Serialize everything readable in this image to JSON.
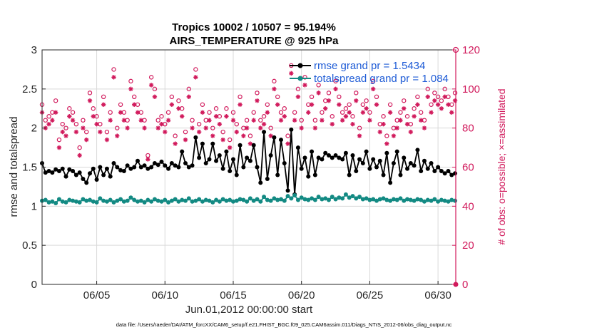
{
  "chart_data": {
    "type": "line",
    "title": "Tropics 10002 / 10507 = 95.194%",
    "subtitle": "AIRS_TEMPERATURE @ 925 hPa",
    "xlabel": "Jun.01,2012 00:00:00 start",
    "ylabel": "rmse and totalspread",
    "ylabel_right": "# of obs: o=possible; ×=assimilated",
    "footnote": "data file: /Users/raeder/DAI/ATM_forcXX/CAM6_setup/f.e21.FHIST_BGC.f09_025.CAM6assim.011/Diags_NTrS_2012-06/obs_diag_output.nc",
    "xlim": [
      1.0,
      31.3
    ],
    "ylim": [
      0,
      3
    ],
    "ylim_right": [
      0,
      120
    ],
    "x_ticks": [
      5,
      10,
      15,
      20,
      25,
      30
    ],
    "x_tick_labels": [
      "06/05",
      "06/10",
      "06/15",
      "06/20",
      "06/25",
      "06/30"
    ],
    "y_tick_labels": [
      "0",
      "0.5",
      "1",
      "1.5",
      "2",
      "2.5",
      "3"
    ],
    "y_ticks": [
      0,
      0.5,
      1,
      1.5,
      2,
      2.5,
      3
    ],
    "y_right_tick_labels": [
      "0",
      "20",
      "40",
      "60",
      "80",
      "100",
      "120"
    ],
    "y_right_ticks": [
      0,
      20,
      40,
      60,
      80,
      100,
      120
    ],
    "grid": true,
    "legend_position": "top-right",
    "series": [
      {
        "name": "rmse grand pr = 1.5434",
        "color": "#000000",
        "axis": "left",
        "x_start": 1.0,
        "x_step": 0.25,
        "values": [
          1.55,
          1.43,
          1.45,
          1.43,
          1.47,
          1.45,
          1.48,
          1.38,
          1.47,
          1.45,
          1.4,
          1.43,
          1.35,
          1.3,
          1.42,
          1.48,
          1.34,
          1.5,
          1.4,
          1.48,
          1.38,
          1.55,
          1.5,
          1.46,
          1.45,
          1.52,
          1.48,
          1.5,
          1.58,
          1.5,
          1.52,
          1.48,
          1.5,
          1.55,
          1.53,
          1.57,
          1.52,
          1.48,
          1.55,
          1.52,
          1.5,
          1.7,
          1.55,
          1.5,
          1.52,
          1.88,
          1.62,
          1.8,
          1.55,
          1.6,
          1.8,
          1.58,
          1.65,
          1.48,
          1.7,
          1.45,
          1.6,
          1.4,
          1.78,
          1.5,
          1.62,
          1.58,
          1.78,
          1.5,
          1.3,
          1.95,
          1.35,
          1.65,
          1.88,
          1.4,
          1.85,
          1.55,
          1.2,
          1.98,
          1.15,
          1.75,
          1.48,
          1.62,
          1.38,
          1.7,
          1.4,
          1.62,
          1.6,
          1.68,
          1.65,
          1.62,
          1.65,
          1.62,
          1.6,
          1.68,
          1.4,
          1.65,
          1.45,
          1.6,
          1.55,
          1.7,
          1.48,
          1.6,
          1.5,
          1.58,
          1.4,
          1.68,
          1.3,
          1.55,
          1.7,
          1.4,
          1.62,
          1.48,
          1.55,
          1.52,
          1.72,
          1.45,
          1.58,
          1.48,
          1.55,
          1.45,
          1.5,
          1.45,
          1.42,
          1.45,
          1.4,
          1.42,
          1.4,
          1.7,
          1.32,
          1.65,
          1.28,
          1.6,
          1.4,
          1.72,
          1.5,
          1.75,
          1.5,
          1.45,
          1.55,
          1.5,
          1.52,
          1.45,
          1.55,
          1.65,
          1.48,
          1.55,
          1.45,
          1.6,
          1.5,
          1.62,
          1.45,
          1.58,
          1.48,
          1.55,
          1.5,
          1.52,
          1.45,
          1.48,
          1.55,
          1.5,
          1.8,
          1.45,
          1.52,
          1.6,
          1.75,
          1.48,
          1.55,
          1.45,
          1.6,
          1.55,
          1.65,
          1.48,
          1.6,
          1.58,
          1.62,
          1.55,
          1.62,
          1.58,
          1.65,
          1.52,
          1.7,
          1.6,
          1.68,
          1.62,
          1.55,
          1.48
        ]
      },
      {
        "name": "totalspread grand pr = 1.084",
        "color": "#138a83",
        "axis": "left",
        "x_start": 1.0,
        "x_step": 0.25,
        "values": [
          1.07,
          1.08,
          1.05,
          1.06,
          1.04,
          1.09,
          1.06,
          1.05,
          1.08,
          1.07,
          1.06,
          1.05,
          1.09,
          1.07,
          1.08,
          1.06,
          1.05,
          1.1,
          1.07,
          1.06,
          1.08,
          1.05,
          1.07,
          1.09,
          1.06,
          1.07,
          1.11,
          1.08,
          1.06,
          1.07,
          1.05,
          1.08,
          1.06,
          1.09,
          1.07,
          1.06,
          1.08,
          1.05,
          1.07,
          1.09,
          1.06,
          1.08,
          1.07,
          1.1,
          1.06,
          1.07,
          1.09,
          1.06,
          1.08,
          1.07,
          1.05,
          1.08,
          1.06,
          1.09,
          1.07,
          1.08,
          1.06,
          1.07,
          1.09,
          1.08,
          1.06,
          1.1,
          1.07,
          1.09,
          1.06,
          1.12,
          1.08,
          1.07,
          1.1,
          1.08,
          1.09,
          1.07,
          1.13,
          1.1,
          1.14,
          1.08,
          1.11,
          1.09,
          1.08,
          1.1,
          1.08,
          1.12,
          1.09,
          1.1,
          1.08,
          1.12,
          1.09,
          1.11,
          1.1,
          1.15,
          1.11,
          1.13,
          1.1,
          1.12,
          1.09,
          1.1,
          1.08,
          1.09,
          1.07,
          1.09,
          1.1,
          1.08,
          1.07,
          1.09,
          1.08,
          1.1,
          1.07,
          1.09,
          1.08,
          1.07,
          1.09,
          1.08,
          1.06,
          1.08,
          1.07,
          1.09,
          1.06,
          1.08,
          1.07,
          1.06,
          1.08,
          1.07,
          1.09,
          1.06,
          1.07,
          1.08,
          1.06,
          1.09,
          1.07,
          1.06,
          1.08,
          1.07,
          1.09,
          1.07,
          1.08,
          1.06,
          1.09,
          1.08,
          1.07,
          1.06,
          1.08,
          1.07,
          1.09,
          1.06,
          1.07,
          1.08,
          1.06,
          1.09,
          1.07,
          1.06,
          1.08,
          1.07,
          1.09,
          1.06,
          1.08,
          1.07,
          1.06,
          1.1,
          1.07,
          1.08,
          1.06,
          1.09,
          1.07,
          1.06,
          1.08,
          1.12,
          1.07,
          1.09,
          1.06,
          1.08,
          1.07,
          1.06,
          1.09,
          1.07,
          1.08,
          1.06,
          1.07,
          1.09,
          1.06,
          1.07
        ]
      },
      {
        "name": "obs possible",
        "color": "#d11a5c",
        "axis": "right",
        "marker": "circle",
        "x_start": 1.0,
        "x_step": 0.25,
        "values": [
          92,
          84,
          86,
          88,
          94,
          74,
          82,
          80,
          90,
          88,
          82,
          70,
          84,
          78,
          98,
          90,
          86,
          82,
          96,
          78,
          88,
          110,
          80,
          92,
          88,
          84,
          104,
          96,
          92,
          88,
          84,
          66,
          106,
          100,
          84,
          86,
          82,
          88,
          96,
          76,
          94,
          90,
          78,
          100,
          84,
          110,
          82,
          92,
          84,
          88,
          80,
          90,
          86,
          78,
          90,
          74,
          88,
          82,
          96,
          80,
          84,
          76,
          88,
          98,
          84,
          86,
          92,
          80,
          104,
          96,
          88,
          90,
          76,
          112,
          88,
          100,
          84,
          106,
          92,
          96,
          84,
          102,
          88,
          94,
          98,
          86,
          104,
          96,
          88,
          90,
          92,
          86,
          98,
          80,
          92,
          94,
          88,
          104,
          96,
          82,
          86,
          76,
          92,
          80,
          84,
          88,
          94,
          86,
          82,
          90,
          96,
          88,
          84,
          100,
          92,
          98,
          96,
          94,
          100,
          96,
          92,
          98,
          102,
          94,
          88,
          32,
          86,
          98,
          92,
          94,
          96,
          86,
          94,
          72,
          88,
          90,
          96,
          84,
          92,
          78,
          88,
          90,
          92,
          84,
          98,
          86,
          90,
          88,
          80,
          96,
          84,
          90,
          88,
          76,
          92,
          84,
          86,
          90,
          80,
          102,
          86,
          88,
          98,
          84,
          90,
          80,
          96,
          88,
          82,
          92,
          84,
          98,
          86,
          90,
          92,
          88,
          102,
          86,
          94,
          118,
          64,
          68
        ]
      },
      {
        "name": "obs assimilated",
        "color": "#d11a5c",
        "axis": "right",
        "marker": "star",
        "x_start": 1.0,
        "x_step": 0.25,
        "values": [
          88,
          80,
          82,
          84,
          88,
          70,
          78,
          76,
          86,
          84,
          78,
          66,
          80,
          74,
          94,
          86,
          82,
          78,
          92,
          74,
          84,
          106,
          76,
          88,
          84,
          80,
          100,
          92,
          88,
          84,
          80,
          64,
          102,
          96,
          80,
          82,
          78,
          84,
          92,
          72,
          90,
          86,
          74,
          96,
          80,
          106,
          78,
          88,
          80,
          84,
          76,
          86,
          82,
          74,
          86,
          70,
          84,
          78,
          92,
          76,
          80,
          72,
          84,
          94,
          80,
          82,
          88,
          76,
          100,
          92,
          84,
          86,
          72,
          108,
          84,
          96,
          80,
          102,
          88,
          92,
          80,
          98,
          84,
          90,
          94,
          82,
          100,
          92,
          84,
          86,
          88,
          82,
          94,
          76,
          88,
          90,
          84,
          100,
          92,
          78,
          82,
          72,
          88,
          76,
          80,
          84,
          90,
          82,
          78,
          86,
          92,
          84,
          80,
          96,
          88,
          94,
          92,
          90,
          96,
          92,
          88,
          94,
          98,
          90,
          84,
          30,
          82,
          94,
          88,
          90,
          92,
          82,
          90,
          68,
          84,
          86,
          92,
          80,
          88,
          74,
          84,
          86,
          88,
          80,
          94,
          82,
          86,
          84,
          76,
          92,
          80,
          86,
          84,
          72,
          88,
          80,
          82,
          86,
          76,
          98,
          82,
          84,
          94,
          80,
          86,
          76,
          92,
          84,
          78,
          88,
          80,
          94,
          82,
          86,
          88,
          84,
          98,
          82,
          90,
          114,
          62,
          66
        ]
      }
    ]
  },
  "colors": {
    "left_axis": "#262626",
    "right_axis": "#d11a5c",
    "legend_text": "#1f5cd6"
  }
}
